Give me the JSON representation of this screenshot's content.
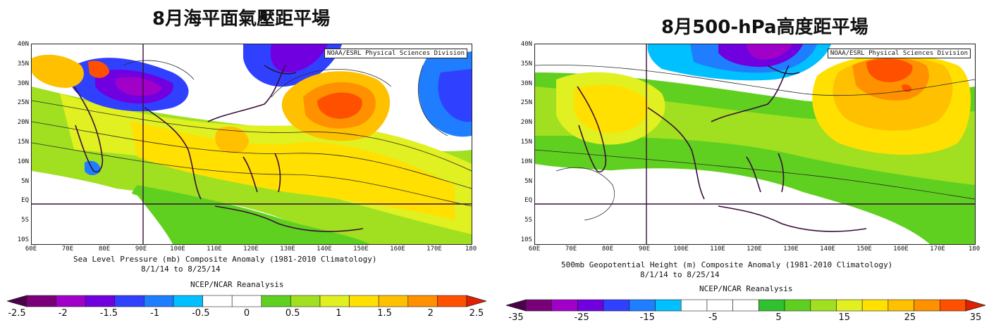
{
  "panels": [
    {
      "title": "8月海平面氣壓距平場",
      "attribution": "NOAA/ESRL Physical Sciences Division",
      "y_ticks": [
        "40N",
        "35N",
        "30N",
        "25N",
        "20N",
        "15N",
        "10N",
        "5N",
        "EQ",
        "5S",
        "10S"
      ],
      "x_ticks": [
        "60E",
        "70E",
        "80E",
        "90E",
        "100E",
        "110E",
        "120E",
        "130E",
        "140E",
        "150E",
        "160E",
        "170E",
        "180"
      ],
      "caption_lines": [
        "Sea Level Pressure (mb) Composite Anomaly (1981-2010 Climatology)",
        "8/1/14  to 8/25/14",
        "NCEP/NCAR Reanalysis"
      ],
      "colorbar_labels": [
        "-2.5",
        "-2",
        "-1.5",
        "-1",
        "-0.5",
        "0",
        "0.5",
        "1",
        "1.5",
        "2",
        "2.5"
      ],
      "colorbar_colors": [
        "#4b004b",
        "#7a007a",
        "#a000c8",
        "#7000e0",
        "#3040ff",
        "#1e7eff",
        "#00c0ff",
        "#ffffff",
        "#ffffff",
        "#60d020",
        "#a0e020",
        "#e0f020",
        "#ffe000",
        "#ffc000",
        "#ff9000",
        "#ff5000",
        "#e02000"
      ]
    },
    {
      "title": "8月500-hPa高度距平場",
      "attribution": "NOAA/ESRL Physical Sciences Division",
      "y_ticks": [
        "40N",
        "35N",
        "30N",
        "25N",
        "20N",
        "15N",
        "10N",
        "5N",
        "EQ",
        "5S",
        "10S"
      ],
      "x_ticks": [
        "60E",
        "70E",
        "80E",
        "90E",
        "100E",
        "110E",
        "120E",
        "130E",
        "140E",
        "150E",
        "160E",
        "170E",
        "180"
      ],
      "caption_lines": [
        "500mb Geopotential Height (m) Composite Anomaly (1981-2010 Climatology)",
        "8/1/14  to 8/25/14",
        "NCEP/NCAR Reanalysis"
      ],
      "colorbar_labels": [
        "-35",
        "-25",
        "-15",
        "-5",
        "5",
        "15",
        "25",
        "35"
      ],
      "colorbar_colors": [
        "#4b004b",
        "#7a007a",
        "#a000c8",
        "#7000e0",
        "#3040ff",
        "#1e7eff",
        "#00c0ff",
        "#ffffff",
        "#ffffff",
        "#ffffff",
        "#30c030",
        "#60d020",
        "#a0e020",
        "#e0f020",
        "#ffe000",
        "#ffc000",
        "#ff9000",
        "#ff5000",
        "#e02000"
      ]
    }
  ]
}
